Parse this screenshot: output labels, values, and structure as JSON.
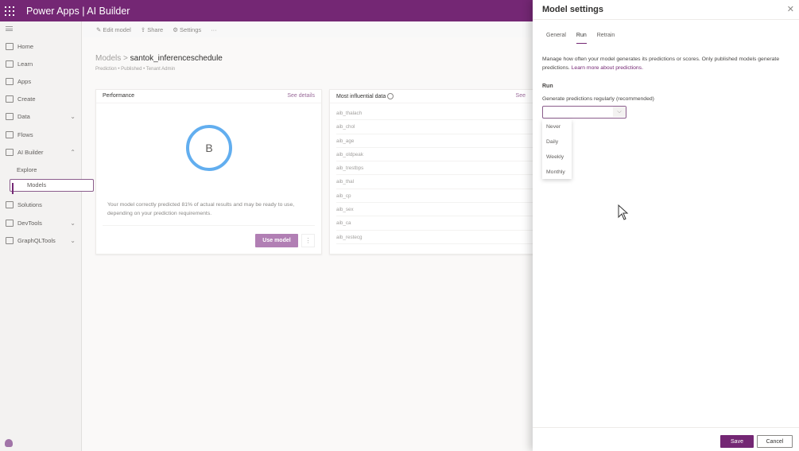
{
  "header": {
    "app": "Power Apps",
    "separator": "|",
    "product": "AI Builder"
  },
  "sidebar": {
    "items": [
      {
        "label": "Home",
        "icon": "home-icon"
      },
      {
        "label": "Learn",
        "icon": "book-icon"
      },
      {
        "label": "Apps",
        "icon": "apps-icon"
      },
      {
        "label": "Create",
        "icon": "plus-icon"
      },
      {
        "label": "Data",
        "icon": "table-icon",
        "expandable": true
      },
      {
        "label": "Flows",
        "icon": "flow-icon"
      },
      {
        "label": "AI Builder",
        "icon": "brain-icon",
        "expanded": true
      },
      {
        "label": "Explore",
        "sub": true
      },
      {
        "label": "Models",
        "sub": true,
        "selected": true
      },
      {
        "label": "Solutions",
        "icon": "solutions-icon"
      },
      {
        "label": "DevTools",
        "icon": "devtools-icon",
        "expandable": true
      },
      {
        "label": "GraphQLTools",
        "icon": "devtools-icon",
        "expandable": true
      }
    ]
  },
  "commands": {
    "edit": "Edit model",
    "share": "Share",
    "settings": "Settings",
    "more": "···"
  },
  "breadcrumb": {
    "root": "Models",
    "sep": ">",
    "current": "santok_inferenceschedule"
  },
  "meta": "Prediction • Published • Tenant Admin",
  "performance": {
    "title": "Performance",
    "see_details": "See details",
    "grade": "B",
    "text": "Your model correctly predicted 81% of actual results and may be ready to use, depending on your prediction requirements.",
    "use_model": "Use model",
    "more": "⋮"
  },
  "influential": {
    "title": "Most influential data",
    "see": "See",
    "items": [
      "aib_thalach",
      "aib_chol",
      "aib_age",
      "aib_oldpeak",
      "aib_trestbps",
      "aib_thal",
      "aib_cp",
      "aib_sex",
      "aib_ca",
      "aib_restecg"
    ]
  },
  "panel": {
    "title": "Model settings",
    "close": "✕",
    "tabs": [
      "General",
      "Run",
      "Retrain"
    ],
    "active_tab": "Run",
    "description": "Manage how often your model generates its predictions or scores. Only published models generate predictions. ",
    "learn_more": "Learn more about predictions.",
    "run_label": "Run",
    "generate_label": "Generate predictions regularly (recommended)",
    "select_value": "",
    "options": [
      "Never",
      "Daily",
      "Weekly",
      "Monthly"
    ],
    "save": "Save",
    "cancel": "Cancel"
  },
  "colors": {
    "brand": "#742774",
    "ring": "#62aeef"
  }
}
